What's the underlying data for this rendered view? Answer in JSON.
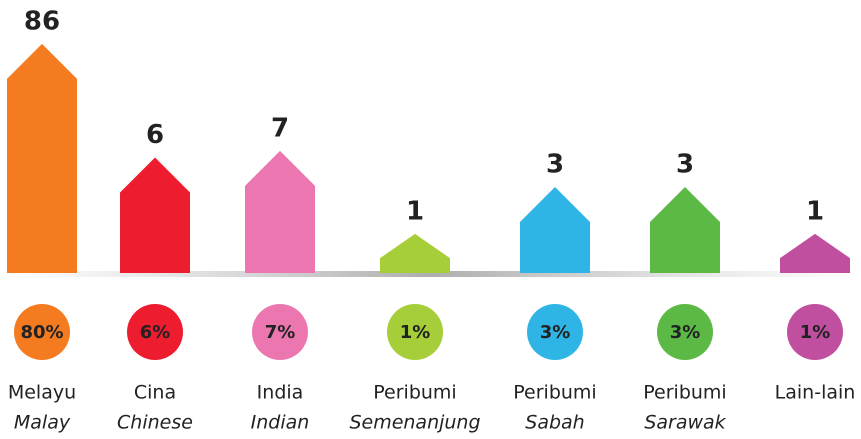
{
  "chart_data": {
    "type": "house-bar",
    "categories": [
      "Melayu",
      "Cina",
      "India",
      "Peribumi",
      "Peribumi",
      "Peribumi",
      "Lain-lain"
    ],
    "categories_en": [
      "Malay",
      "Chinese",
      "Indian",
      "Semenanjung",
      "Sabah",
      "Sarawak",
      null
    ],
    "values": [
      86,
      6,
      7,
      1,
      3,
      3,
      1
    ],
    "shares": [
      80,
      6,
      7,
      1,
      3,
      3,
      1
    ],
    "share_labels": [
      "80%",
      "6%",
      "7%",
      "1%",
      "3%",
      "3%",
      "1%"
    ],
    "colors": [
      "#f47b20",
      "#ed1c2e",
      "#ec77b0",
      "#a6ce39",
      "#2fb5e5",
      "#5cb946",
      "#c04f9f"
    ],
    "ylim": [
      0.4,
      100
    ],
    "log_scale": true
  }
}
